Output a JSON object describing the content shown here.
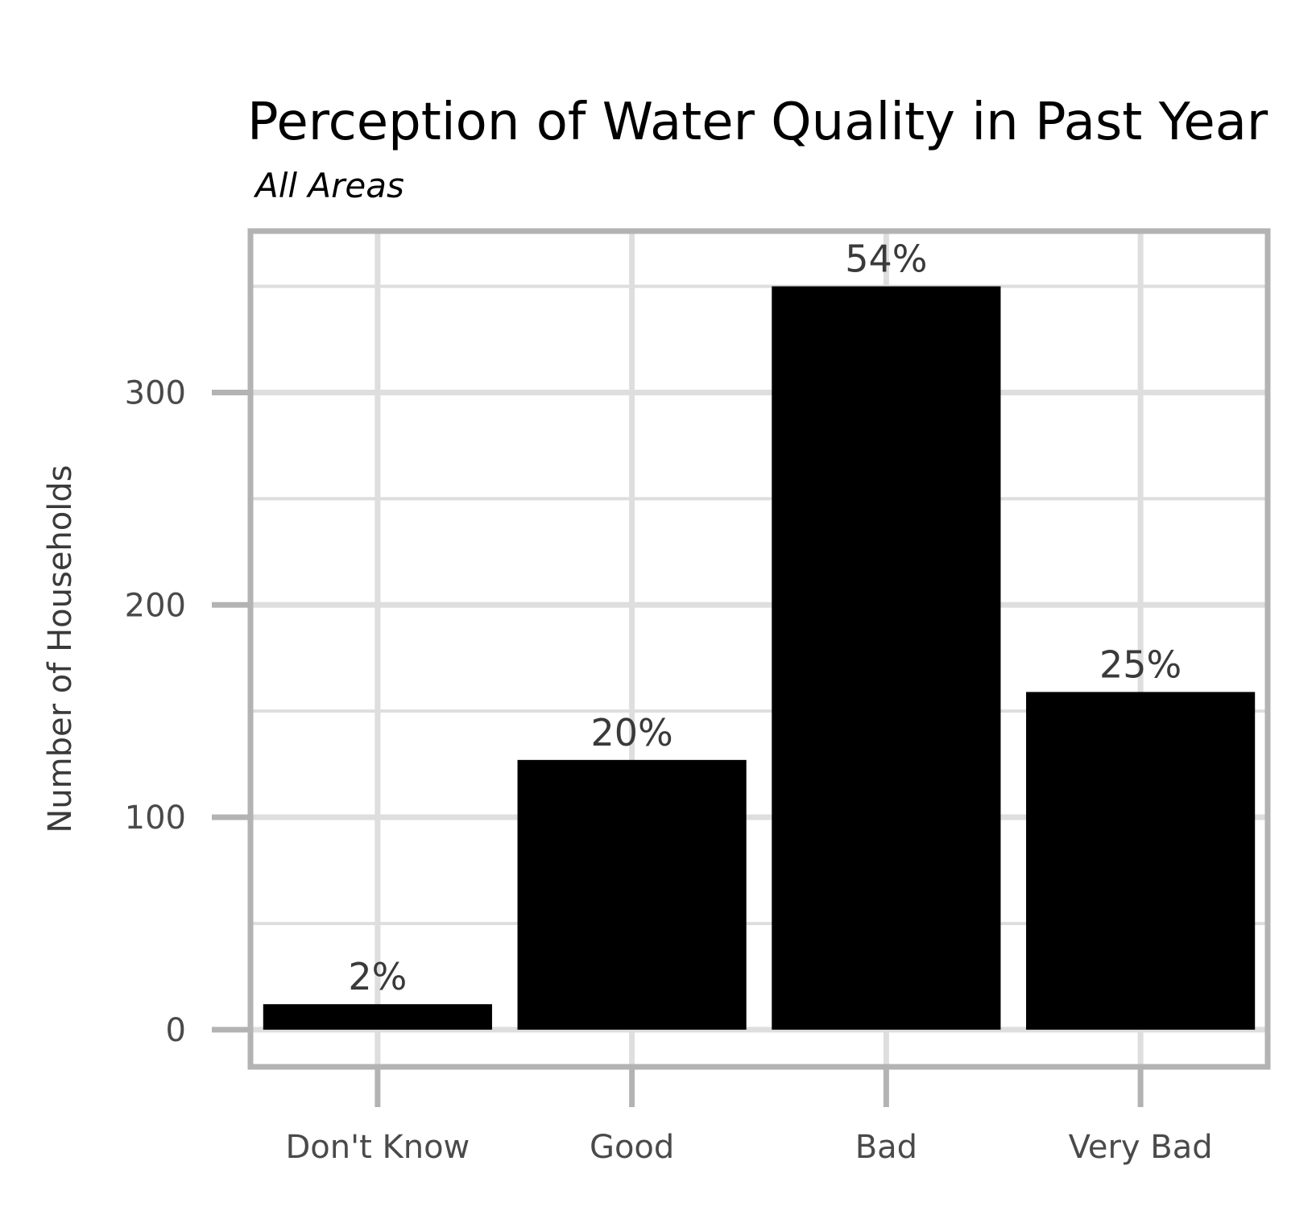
{
  "chart_data": {
    "type": "bar",
    "title": "Perception of Water Quality in Past Year",
    "subtitle": "All Areas",
    "xlabel": "",
    "ylabel": "Number of Households",
    "categories": [
      "Don't Know",
      "Good",
      "Bad",
      "Very Bad"
    ],
    "values": [
      12,
      127,
      350,
      159
    ],
    "data_labels": [
      "2%",
      "20%",
      "54%",
      "25%"
    ],
    "ylim": [
      -17.5,
      376
    ],
    "yticks": [
      0,
      100,
      200,
      300
    ],
    "ytick_labels": [
      "0",
      "100",
      "200",
      "300"
    ],
    "grid": true,
    "legend": "none",
    "colors": {
      "bar": "#000000",
      "grid": "#dedede",
      "panel_border": "#b3b3b3",
      "tick": "#b3b3b3",
      "text": "#4a4a4a"
    }
  }
}
